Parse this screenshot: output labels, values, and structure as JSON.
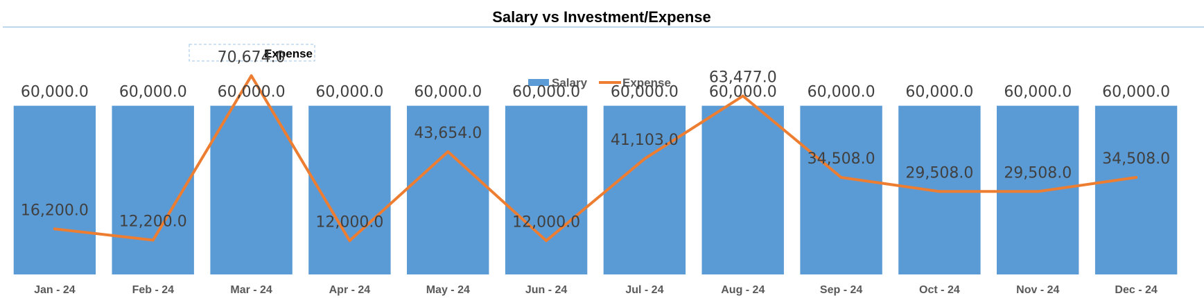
{
  "chart_data": {
    "type": "bar",
    "title": "Salary vs Investment/Expense",
    "categories": [
      "Jan - 24",
      "Feb - 24",
      "Mar - 24",
      "Apr - 24",
      "May - 24",
      "Jun - 24",
      "Jul - 24",
      "Aug - 24",
      "Sep - 24",
      "Oct - 24",
      "Nov - 24",
      "Dec - 24"
    ],
    "series": [
      {
        "name": "Salary",
        "type": "bar",
        "color": "#5B9BD5",
        "values": [
          60000,
          60000,
          60000,
          60000,
          60000,
          60000,
          60000,
          60000,
          60000,
          60000,
          60000,
          60000
        ],
        "labels": [
          "60,000.0",
          "60,000.0",
          "60,000.0",
          "60,000.0",
          "60,000.0",
          "60,000.0",
          "60,000.0",
          "60,000.0",
          "60,000.0",
          "60,000.0",
          "60,000.0",
          "60,000.0"
        ]
      },
      {
        "name": "Expense",
        "type": "line",
        "color": "#ED7D31",
        "values": [
          16200,
          12200,
          70674,
          12000,
          43654,
          12000,
          41103,
          63477,
          34508,
          29508,
          29508,
          34508
        ],
        "labels": [
          "16,200.0",
          "12,200.0",
          "70,674.0",
          "12,000.0",
          "43,654.0",
          "12,000.0",
          "41,103.0",
          "63,477.0",
          "34,508.0",
          "29,508.0",
          "29,508.0",
          "34,508.0"
        ]
      }
    ],
    "xlabel": "",
    "ylabel": "",
    "ylim": [
      0,
      70000
    ],
    "grid": false,
    "legend": "top-center",
    "annotation": "Expense"
  }
}
